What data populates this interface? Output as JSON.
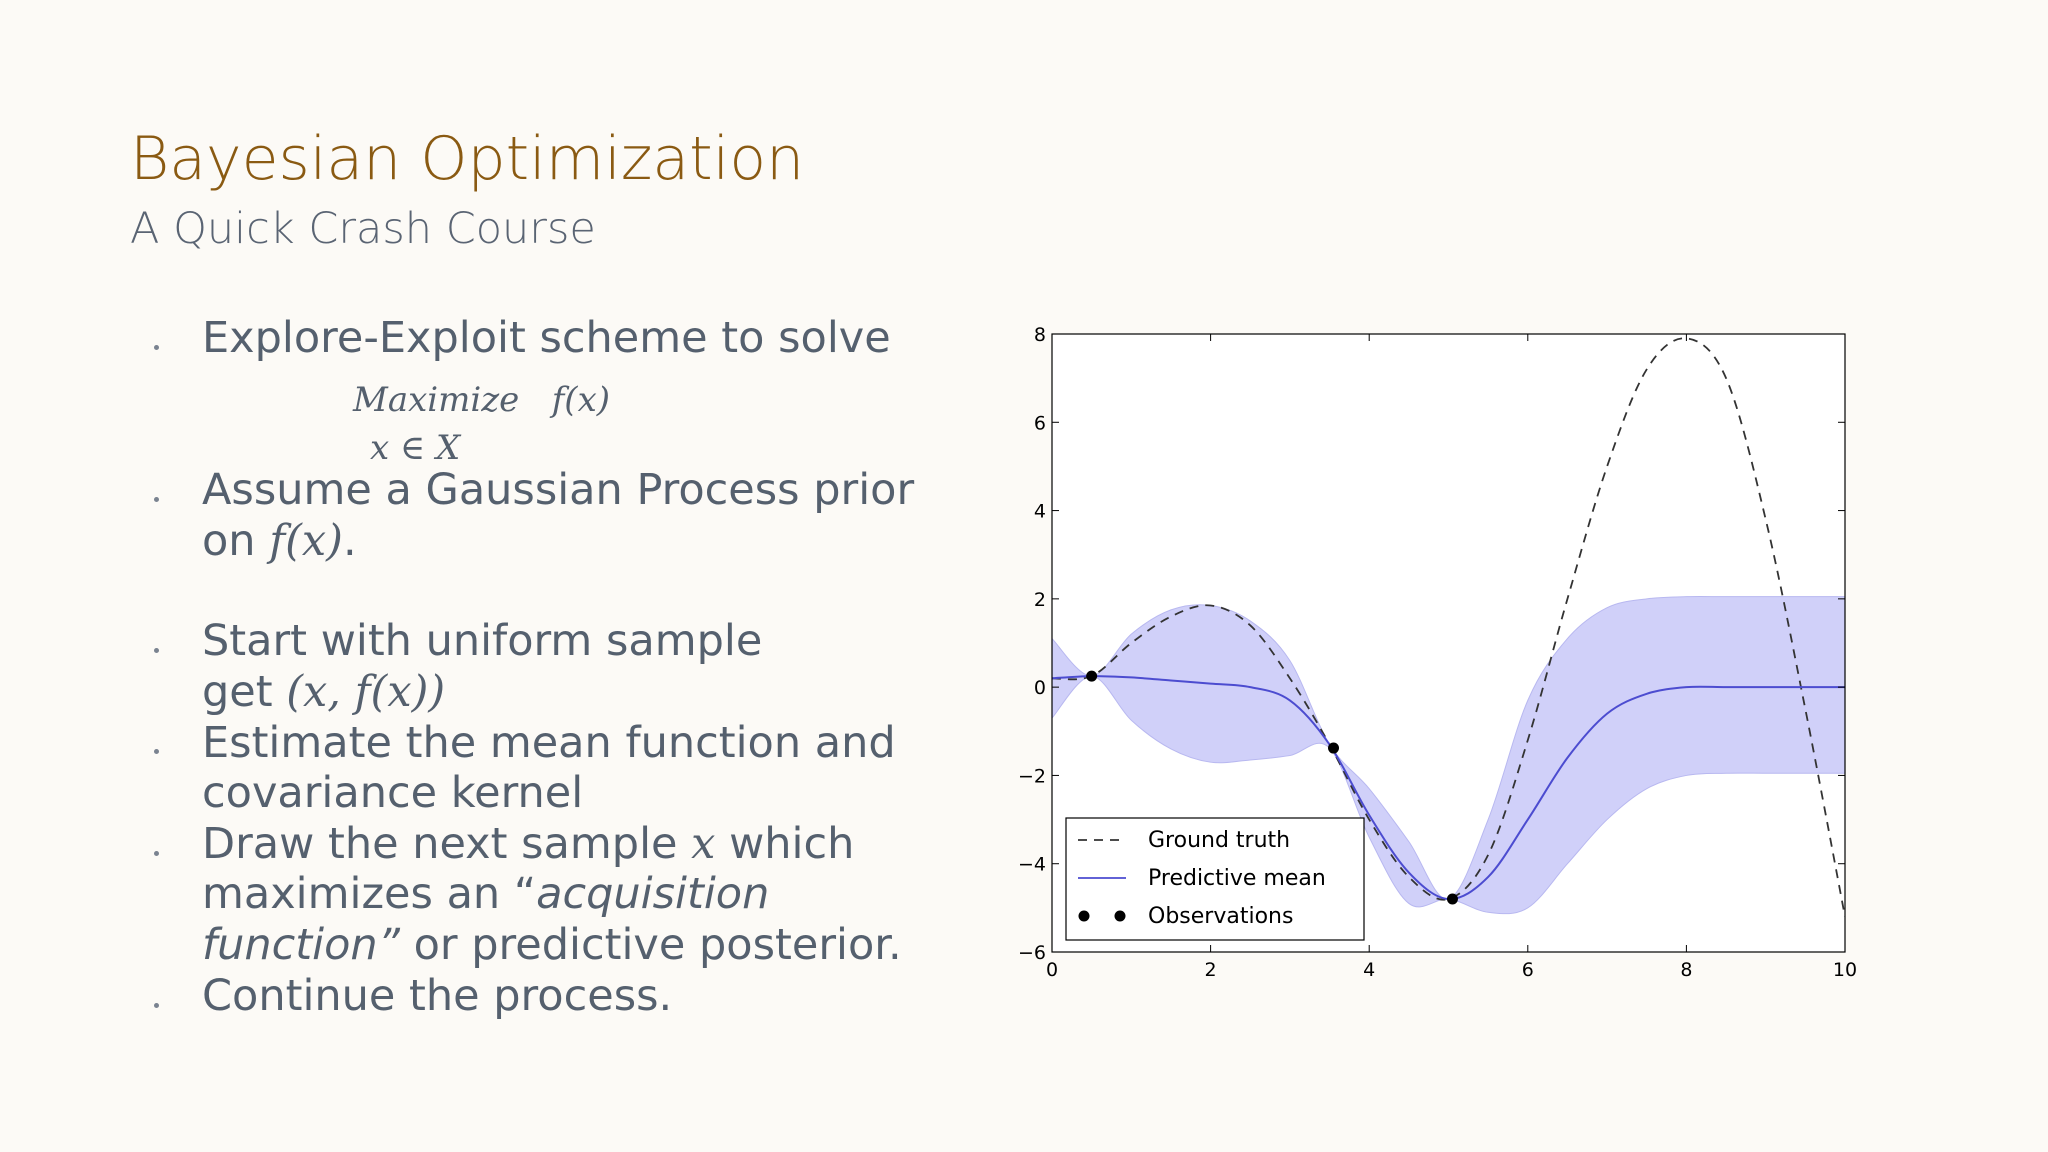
{
  "slide": {
    "title": "Bayesian Optimization",
    "subtitle": "A Quick Crash Course",
    "bullets": {
      "b1_line1": "Explore-Exploit scheme to solve",
      "eq_line1_a": "Maximize",
      "eq_line1_b": "f(x)",
      "eq_line2": "x ∈ X",
      "b2_line1": "Assume a Gaussian Process prior",
      "b2_line2_prefix": "on ",
      "b2_line2_math": "f(x)",
      "b2_line2_suffix": ".",
      "b3_line1": "Start with uniform sample",
      "b3_line2_prefix": "get ",
      "b3_line2_math": "(x, f(x))",
      "b4_line1": "Estimate the mean function and",
      "b4_line2": "covariance kernel",
      "b5_line1_prefix": "Draw the next sample ",
      "b5_line1_math": "x",
      "b5_line1_suffix": " which",
      "b5_line2_prefix": "maximizes an “",
      "b5_line2_italic": "acquisition",
      "b5_line3_italic": "function”",
      "b5_line3_suffix": " or predictive posterior.",
      "b6_line1": "Continue the process."
    }
  },
  "chart_data": {
    "type": "line",
    "xlim": [
      0,
      10
    ],
    "ylim": [
      -6,
      8
    ],
    "xticks": [
      0,
      2,
      4,
      6,
      8,
      10
    ],
    "yticks": [
      -6,
      -4,
      -2,
      0,
      2,
      4,
      6,
      8
    ],
    "xtick_labels": [
      "0",
      "2",
      "4",
      "6",
      "8",
      "10"
    ],
    "ytick_labels": [
      "−6",
      "−4",
      "−2",
      "0",
      "2",
      "4",
      "6",
      "8"
    ],
    "grid": false,
    "legend_position": "bottom-left",
    "series": [
      {
        "name": "Ground truth",
        "style": "dashed",
        "color": "#333333",
        "x": [
          0,
          0.5,
          1,
          1.5,
          2,
          2.5,
          3,
          3.5,
          4,
          4.5,
          5,
          5.5,
          6,
          6.5,
          7,
          7.5,
          8,
          8.5,
          9,
          9.5,
          10
        ],
        "y": [
          0.2,
          0.25,
          1.0,
          1.6,
          1.85,
          1.4,
          0.2,
          -1.3,
          -3.0,
          -4.3,
          -4.8,
          -3.8,
          -1.2,
          2.0,
          5.0,
          7.2,
          7.9,
          7.0,
          3.8,
          -0.5,
          -5.2
        ]
      },
      {
        "name": "Predictive mean",
        "style": "solid",
        "color": "#4c4cd0",
        "x": [
          0,
          0.5,
          1,
          1.5,
          2,
          2.5,
          3,
          3.5,
          4,
          4.5,
          5,
          5.5,
          6,
          6.5,
          7,
          7.5,
          8,
          8.5,
          9,
          9.5,
          10
        ],
        "y": [
          0.2,
          0.25,
          0.22,
          0.15,
          0.08,
          0.0,
          -0.3,
          -1.3,
          -2.9,
          -4.2,
          -4.8,
          -4.3,
          -3.0,
          -1.6,
          -0.6,
          -0.15,
          0.0,
          0.0,
          0.0,
          0.0,
          0.0
        ]
      },
      {
        "name": "Observations",
        "style": "markers",
        "color": "#000000",
        "x": [
          0.5,
          3.55,
          5.05
        ],
        "y": [
          0.25,
          -1.38,
          -4.8
        ]
      }
    ],
    "confidence_band": {
      "color": "#c8c8f8",
      "x": [
        0,
        0.5,
        1,
        1.5,
        2,
        2.5,
        3,
        3.5,
        4,
        4.5,
        5,
        5.5,
        6,
        6.5,
        7,
        7.5,
        8,
        8.5,
        9,
        9.5,
        10
      ],
      "upper": [
        1.1,
        0.25,
        1.2,
        1.75,
        1.85,
        1.5,
        0.6,
        -1.3,
        -2.3,
        -3.5,
        -4.8,
        -3.0,
        -0.3,
        1.1,
        1.8,
        2.0,
        2.05,
        2.05,
        2.05,
        2.05,
        2.05
      ],
      "lower": [
        -0.7,
        0.25,
        -0.75,
        -1.4,
        -1.7,
        -1.65,
        -1.55,
        -1.38,
        -3.4,
        -4.9,
        -4.8,
        -5.1,
        -5.0,
        -4.0,
        -3.0,
        -2.3,
        -2.0,
        -1.95,
        -1.95,
        -1.95,
        -1.95
      ]
    }
  }
}
